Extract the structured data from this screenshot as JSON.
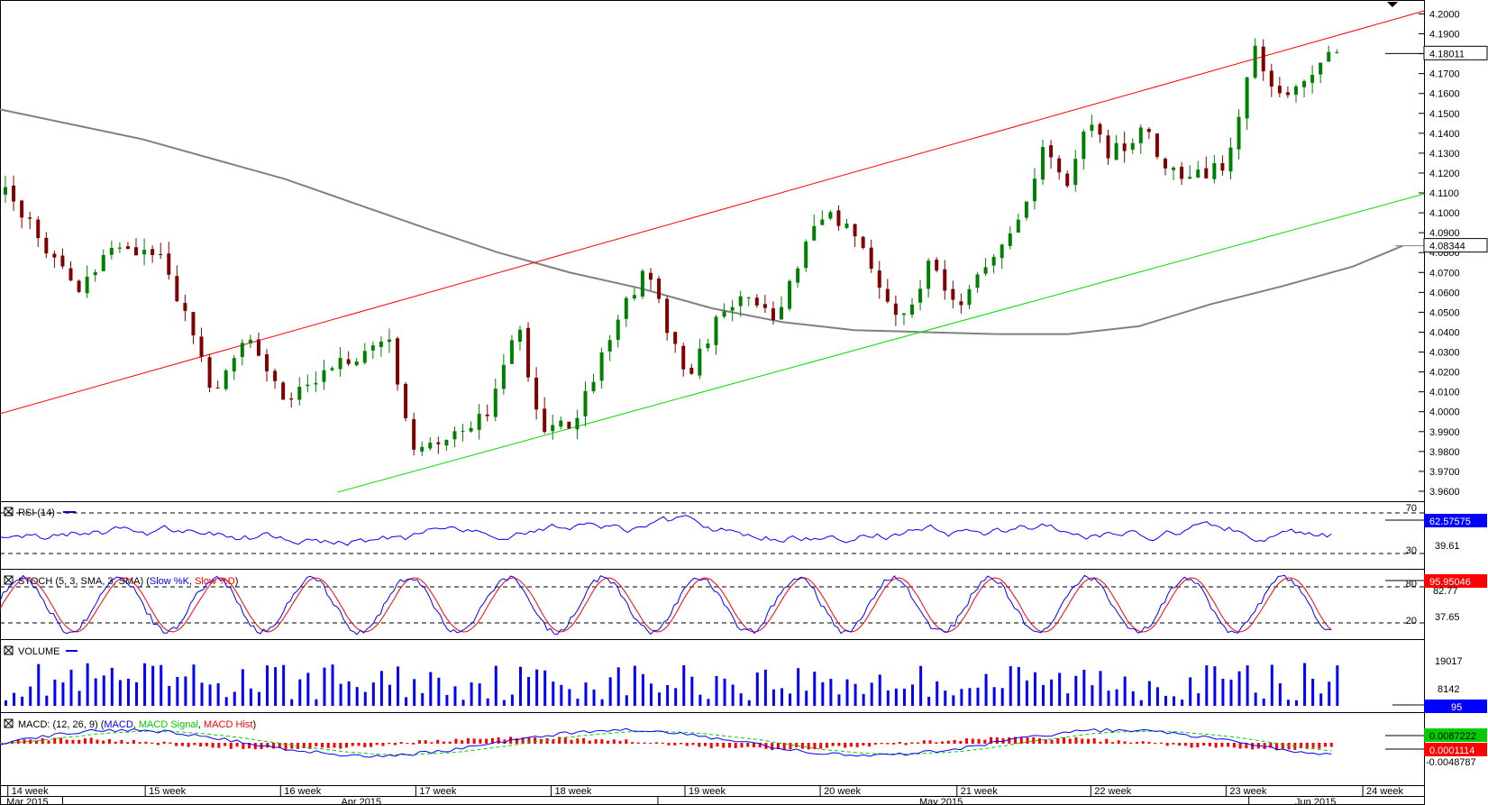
{
  "chart_data": {
    "type": "candlestick",
    "price_axis": {
      "ticks": [
        "4.2000",
        "4.1900",
        "4.1800",
        "4.1700",
        "4.1600",
        "4.1500",
        "4.1400",
        "4.1300",
        "4.1200",
        "4.1100",
        "4.1000",
        "4.0900",
        "4.0800",
        "4.0700",
        "4.0600",
        "4.0500",
        "4.0400",
        "4.0300",
        "4.0200",
        "4.0100",
        "4.0000",
        "3.9900",
        "3.9800",
        "3.9700",
        "3.9600"
      ],
      "ylim": [
        3.955,
        4.207
      ],
      "last_price_label": "4.18011",
      "ma_label": "4.08344",
      "last_price": 4.18011,
      "ma_value": 4.08344
    },
    "trend_lines": [
      {
        "color": "#ff0000",
        "from": [
          0,
          3.999
        ],
        "to": [
          1.0,
          4.2015
        ]
      },
      {
        "color": "#00dd00",
        "from": [
          0.237,
          3.9595
        ],
        "to": [
          1.0,
          4.1095
        ]
      }
    ],
    "moving_average": {
      "color": "#808080",
      "x": [
        0,
        0.1,
        0.2,
        0.3,
        0.35,
        0.4,
        0.45,
        0.5,
        0.55,
        0.6,
        0.65,
        0.7,
        0.75,
        0.8,
        0.85,
        0.9,
        0.95,
        0.985
      ],
      "y": [
        4.152,
        4.137,
        4.117,
        4.092,
        4.08,
        4.07,
        4.062,
        4.052,
        4.045,
        4.041,
        4.04,
        4.039,
        4.039,
        4.043,
        4.054,
        4.063,
        4.073,
        4.0834
      ]
    },
    "candles": {
      "count": 164,
      "min": 3.969,
      "max": 4.194,
      "bull_color": "#008000",
      "bear_color": "#800000"
    },
    "x_axis": {
      "weeks": [
        {
          "label": "14 week",
          "pos": 0.0055
        },
        {
          "label": "15 week",
          "pos": 0.102
        },
        {
          "label": "16 week",
          "pos": 0.197
        },
        {
          "label": "17 week",
          "pos": 0.292
        },
        {
          "label": "18 week",
          "pos": 0.387
        },
        {
          "label": "19 week",
          "pos": 0.481
        },
        {
          "label": "20 week",
          "pos": 0.576
        },
        {
          "label": "21 week",
          "pos": 0.672
        },
        {
          "label": "22 week",
          "pos": 0.766
        },
        {
          "label": "23 week",
          "pos": 0.861
        },
        {
          "label": "24 week",
          "pos": 0.957
        }
      ],
      "months": [
        {
          "label": "Mar 2015",
          "pos": 0.002,
          "sep": 0.044
        },
        {
          "label": "Apr 2015",
          "pos": 0.237,
          "sep": 0.462
        },
        {
          "label": "May 2015",
          "pos": 0.643,
          "sep": 0.877
        },
        {
          "label": "Jun 2015",
          "pos": 0.907,
          "sep": null
        }
      ]
    },
    "rsi": {
      "title": "RSI (14)",
      "levels": [
        "70",
        "30"
      ],
      "value_label": "62.57575",
      "mid_label": "39.61",
      "value": 62.57575,
      "mid": 39.61
    },
    "stoch": {
      "title": "STOCH (5, 3, SMA, 3, SMA)",
      "legend_open": "(",
      "k_label": "Slow %K",
      "legend_sep": ", ",
      "d_label": "Slow %D",
      "legend_close": ")",
      "levels": [
        "80",
        "20"
      ],
      "value_label": "95.95046",
      "sub_labels": [
        "82.77",
        "37.65"
      ],
      "value": 95.95046,
      "k_color": "#0000ff",
      "d_color": "#ff0000"
    },
    "volume": {
      "title": "VOLUME",
      "labels": [
        "19017",
        "8142",
        "95"
      ],
      "last_label": "95",
      "ymax": 22000,
      "value": 95,
      "bar_color": "#0000ff"
    },
    "macd": {
      "title": "MACD: (12, 26, 9)",
      "legend_open": " (",
      "macd_label": "MACD",
      "legend_sep": ", ",
      "signal_label": "MACD Signal",
      "hist_label": "MACD Hist",
      "legend_close": ")",
      "value_label": "0.0087222",
      "hist_value_label": "0.0001114",
      "low_label": "-0.0048787",
      "values": [
        0.0087222,
        0.0001114,
        -0.0048787
      ],
      "macd_color": "#0000ff",
      "signal_color": "#00cc00",
      "hist_color": "#ff0000"
    }
  }
}
